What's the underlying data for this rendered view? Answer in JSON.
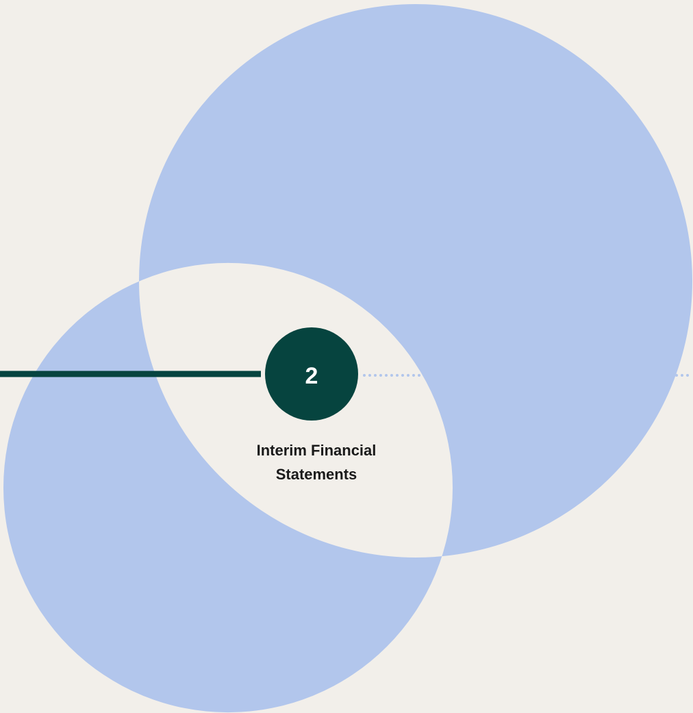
{
  "step": {
    "number": "2",
    "title_lines": [
      "Interim Financial",
      "Statements"
    ]
  }
}
